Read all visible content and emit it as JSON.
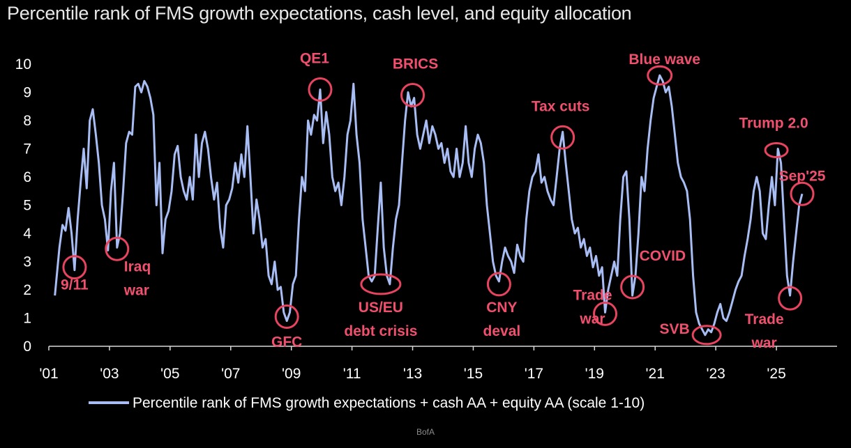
{
  "chart_data": {
    "type": "line",
    "title": "Percentile rank of FMS growth expectations, cash level, and equity allocation",
    "source": "BofA",
    "ylim": [
      0,
      10
    ],
    "yticks": [
      "0",
      "1",
      "2",
      "3",
      "4",
      "5",
      "6",
      "7",
      "8",
      "9",
      "10"
    ],
    "xlim": [
      2001.0,
      2027.0
    ],
    "xticks": [
      {
        "label": "'01",
        "x": 2001
      },
      {
        "label": "'03",
        "x": 2003
      },
      {
        "label": "'05",
        "x": 2005
      },
      {
        "label": "'07",
        "x": 2007
      },
      {
        "label": "'09",
        "x": 2009
      },
      {
        "label": "'11",
        "x": 2011
      },
      {
        "label": "'13",
        "x": 2013
      },
      {
        "label": "'15",
        "x": 2015
      },
      {
        "label": "'17",
        "x": 2017
      },
      {
        "label": "'19",
        "x": 2019
      },
      {
        "label": "'21",
        "x": 2021
      },
      {
        "label": "'23",
        "x": 2023
      },
      {
        "label": "'25",
        "x": 2025
      }
    ],
    "legend": "Percentile rank of FMS growth expectations + cash AA + equity AA (scale 1-10)",
    "series": [
      {
        "name": "Percentile rank of FMS growth expectations + cash AA + equity AA (scale 1-10)",
        "color": "#a9bdf5",
        "points": [
          [
            2001.2,
            1.8
          ],
          [
            2001.35,
            3.5
          ],
          [
            2001.45,
            4.3
          ],
          [
            2001.55,
            4.1
          ],
          [
            2001.65,
            4.9
          ],
          [
            2001.75,
            4.0
          ],
          [
            2001.85,
            2.7
          ],
          [
            2001.95,
            4.5
          ],
          [
            2002.05,
            5.8
          ],
          [
            2002.15,
            7.0
          ],
          [
            2002.25,
            5.6
          ],
          [
            2002.35,
            8.0
          ],
          [
            2002.45,
            8.4
          ],
          [
            2002.55,
            7.5
          ],
          [
            2002.65,
            6.5
          ],
          [
            2002.75,
            5.0
          ],
          [
            2002.85,
            4.5
          ],
          [
            2002.95,
            3.4
          ],
          [
            2003.05,
            5.5
          ],
          [
            2003.15,
            6.5
          ],
          [
            2003.25,
            3.5
          ],
          [
            2003.35,
            4.0
          ],
          [
            2003.45,
            5.5
          ],
          [
            2003.55,
            7.2
          ],
          [
            2003.65,
            7.6
          ],
          [
            2003.75,
            7.5
          ],
          [
            2003.85,
            9.2
          ],
          [
            2003.95,
            9.3
          ],
          [
            2004.05,
            9.0
          ],
          [
            2004.15,
            9.4
          ],
          [
            2004.25,
            9.2
          ],
          [
            2004.35,
            8.8
          ],
          [
            2004.45,
            8.2
          ],
          [
            2004.55,
            5.0
          ],
          [
            2004.65,
            6.5
          ],
          [
            2004.75,
            3.3
          ],
          [
            2004.85,
            4.5
          ],
          [
            2004.95,
            4.8
          ],
          [
            2005.05,
            5.5
          ],
          [
            2005.15,
            6.8
          ],
          [
            2005.25,
            7.1
          ],
          [
            2005.35,
            6.0
          ],
          [
            2005.45,
            5.5
          ],
          [
            2005.55,
            5.2
          ],
          [
            2005.65,
            6.0
          ],
          [
            2005.75,
            5.2
          ],
          [
            2005.85,
            7.5
          ],
          [
            2005.95,
            6.0
          ],
          [
            2006.05,
            7.2
          ],
          [
            2006.15,
            7.6
          ],
          [
            2006.25,
            7.0
          ],
          [
            2006.35,
            6.0
          ],
          [
            2006.45,
            5.2
          ],
          [
            2006.55,
            5.8
          ],
          [
            2006.65,
            4.2
          ],
          [
            2006.75,
            3.5
          ],
          [
            2006.85,
            5.0
          ],
          [
            2006.95,
            5.2
          ],
          [
            2007.05,
            5.6
          ],
          [
            2007.15,
            6.5
          ],
          [
            2007.25,
            5.8
          ],
          [
            2007.35,
            6.8
          ],
          [
            2007.45,
            6.0
          ],
          [
            2007.55,
            7.8
          ],
          [
            2007.65,
            6.0
          ],
          [
            2007.75,
            4.0
          ],
          [
            2007.85,
            5.2
          ],
          [
            2007.95,
            4.5
          ],
          [
            2008.05,
            3.5
          ],
          [
            2008.15,
            3.8
          ],
          [
            2008.25,
            2.5
          ],
          [
            2008.35,
            2.2
          ],
          [
            2008.45,
            3.0
          ],
          [
            2008.55,
            2.0
          ],
          [
            2008.65,
            2.1
          ],
          [
            2008.75,
            1.2
          ],
          [
            2008.85,
            0.9
          ],
          [
            2008.95,
            1.2
          ],
          [
            2009.05,
            2.2
          ],
          [
            2009.15,
            2.5
          ],
          [
            2009.25,
            4.5
          ],
          [
            2009.35,
            6.0
          ],
          [
            2009.45,
            5.5
          ],
          [
            2009.55,
            8.0
          ],
          [
            2009.65,
            7.5
          ],
          [
            2009.75,
            8.2
          ],
          [
            2009.85,
            8.0
          ],
          [
            2009.95,
            9.1
          ],
          [
            2010.05,
            7.2
          ],
          [
            2010.15,
            8.3
          ],
          [
            2010.25,
            7.5
          ],
          [
            2010.35,
            6.0
          ],
          [
            2010.45,
            5.5
          ],
          [
            2010.55,
            5.8
          ],
          [
            2010.65,
            5.0
          ],
          [
            2010.75,
            6.0
          ],
          [
            2010.85,
            7.5
          ],
          [
            2010.95,
            8.0
          ],
          [
            2011.05,
            9.3
          ],
          [
            2011.15,
            7.5
          ],
          [
            2011.25,
            6.5
          ],
          [
            2011.35,
            4.5
          ],
          [
            2011.45,
            3.5
          ],
          [
            2011.55,
            2.5
          ],
          [
            2011.65,
            2.3
          ],
          [
            2011.75,
            2.5
          ],
          [
            2011.85,
            4.2
          ],
          [
            2011.95,
            5.8
          ],
          [
            2012.05,
            3.5
          ],
          [
            2012.15,
            2.5
          ],
          [
            2012.25,
            2.2
          ],
          [
            2012.35,
            3.5
          ],
          [
            2012.45,
            4.5
          ],
          [
            2012.55,
            5.0
          ],
          [
            2012.65,
            6.5
          ],
          [
            2012.75,
            8.0
          ],
          [
            2012.85,
            9.0
          ],
          [
            2012.95,
            8.5
          ],
          [
            2013.05,
            8.8
          ],
          [
            2013.15,
            7.5
          ],
          [
            2013.25,
            7.0
          ],
          [
            2013.35,
            7.5
          ],
          [
            2013.45,
            8.0
          ],
          [
            2013.55,
            7.2
          ],
          [
            2013.65,
            7.8
          ],
          [
            2013.75,
            7.5
          ],
          [
            2013.85,
            7.0
          ],
          [
            2013.95,
            7.2
          ],
          [
            2014.05,
            6.5
          ],
          [
            2014.15,
            7.0
          ],
          [
            2014.25,
            6.2
          ],
          [
            2014.35,
            6.0
          ],
          [
            2014.45,
            7.0
          ],
          [
            2014.55,
            6.0
          ],
          [
            2014.65,
            6.5
          ],
          [
            2014.75,
            7.8
          ],
          [
            2014.85,
            6.5
          ],
          [
            2014.95,
            6.0
          ],
          [
            2015.05,
            7.0
          ],
          [
            2015.15,
            7.5
          ],
          [
            2015.25,
            7.2
          ],
          [
            2015.35,
            6.5
          ],
          [
            2015.45,
            5.0
          ],
          [
            2015.55,
            4.0
          ],
          [
            2015.65,
            3.0
          ],
          [
            2015.75,
            2.5
          ],
          [
            2015.85,
            2.3
          ],
          [
            2015.95,
            3.0
          ],
          [
            2016.05,
            3.5
          ],
          [
            2016.15,
            3.2
          ],
          [
            2016.25,
            3.0
          ],
          [
            2016.35,
            2.6
          ],
          [
            2016.45,
            3.6
          ],
          [
            2016.55,
            3.2
          ],
          [
            2016.65,
            3.0
          ],
          [
            2016.75,
            4.5
          ],
          [
            2016.85,
            5.5
          ],
          [
            2016.95,
            6.0
          ],
          [
            2017.05,
            6.2
          ],
          [
            2017.15,
            6.8
          ],
          [
            2017.25,
            5.8
          ],
          [
            2017.35,
            6.0
          ],
          [
            2017.45,
            5.5
          ],
          [
            2017.55,
            5.2
          ],
          [
            2017.65,
            5.0
          ],
          [
            2017.75,
            6.0
          ],
          [
            2017.85,
            7.0
          ],
          [
            2017.95,
            7.6
          ],
          [
            2018.05,
            6.5
          ],
          [
            2018.15,
            5.5
          ],
          [
            2018.25,
            4.5
          ],
          [
            2018.35,
            4.0
          ],
          [
            2018.45,
            4.2
          ],
          [
            2018.55,
            3.5
          ],
          [
            2018.65,
            3.8
          ],
          [
            2018.75,
            3.2
          ],
          [
            2018.85,
            3.5
          ],
          [
            2018.95,
            2.8
          ],
          [
            2019.05,
            3.2
          ],
          [
            2019.15,
            2.5
          ],
          [
            2019.25,
            2.8
          ],
          [
            2019.35,
            1.2
          ],
          [
            2019.45,
            2.0
          ],
          [
            2019.55,
            2.5
          ],
          [
            2019.65,
            3.0
          ],
          [
            2019.75,
            2.5
          ],
          [
            2019.85,
            4.5
          ],
          [
            2019.95,
            6.0
          ],
          [
            2020.05,
            6.2
          ],
          [
            2020.15,
            4.5
          ],
          [
            2020.25,
            1.8
          ],
          [
            2020.35,
            2.5
          ],
          [
            2020.45,
            4.0
          ],
          [
            2020.55,
            6.0
          ],
          [
            2020.65,
            5.5
          ],
          [
            2020.75,
            7.0
          ],
          [
            2020.85,
            8.0
          ],
          [
            2020.95,
            8.8
          ],
          [
            2021.05,
            9.2
          ],
          [
            2021.15,
            9.6
          ],
          [
            2021.25,
            9.4
          ],
          [
            2021.35,
            9.0
          ],
          [
            2021.45,
            9.2
          ],
          [
            2021.55,
            8.5
          ],
          [
            2021.65,
            7.5
          ],
          [
            2021.75,
            6.5
          ],
          [
            2021.85,
            6.0
          ],
          [
            2021.95,
            5.8
          ],
          [
            2022.05,
            5.5
          ],
          [
            2022.15,
            4.5
          ],
          [
            2022.25,
            2.5
          ],
          [
            2022.35,
            1.2
          ],
          [
            2022.45,
            0.8
          ],
          [
            2022.55,
            0.6
          ],
          [
            2022.65,
            0.4
          ],
          [
            2022.75,
            0.6
          ],
          [
            2022.85,
            0.5
          ],
          [
            2022.95,
            0.8
          ],
          [
            2023.05,
            1.2
          ],
          [
            2023.15,
            1.5
          ],
          [
            2023.25,
            1.0
          ],
          [
            2023.35,
            0.9
          ],
          [
            2023.45,
            1.2
          ],
          [
            2023.55,
            1.6
          ],
          [
            2023.65,
            2.0
          ],
          [
            2023.75,
            2.3
          ],
          [
            2023.85,
            2.5
          ],
          [
            2023.95,
            3.2
          ],
          [
            2024.05,
            3.8
          ],
          [
            2024.15,
            4.5
          ],
          [
            2024.25,
            5.5
          ],
          [
            2024.35,
            6.0
          ],
          [
            2024.45,
            5.5
          ],
          [
            2024.55,
            4.0
          ],
          [
            2024.65,
            3.8
          ],
          [
            2024.75,
            5.0
          ],
          [
            2024.85,
            6.0
          ],
          [
            2024.95,
            5.0
          ],
          [
            2025.05,
            7.0
          ],
          [
            2025.15,
            6.5
          ],
          [
            2025.25,
            4.5
          ],
          [
            2025.35,
            2.5
          ],
          [
            2025.45,
            1.8
          ],
          [
            2025.55,
            3.0
          ],
          [
            2025.65,
            4.0
          ],
          [
            2025.75,
            5.0
          ],
          [
            2025.85,
            5.4
          ]
        ]
      }
    ],
    "annotations": [
      {
        "label": "9/11",
        "lines": [
          "9/11"
        ],
        "x": 2001.85,
        "y": 2.8
      },
      {
        "label": "Iraq war",
        "lines": [
          "Iraq",
          "war"
        ],
        "x": 2003.25,
        "y": 3.45
      },
      {
        "label": "GFC",
        "lines": [
          "GFC"
        ],
        "x": 2008.85,
        "y": 1.05
      },
      {
        "label": "QE1",
        "lines": [
          "QE1"
        ],
        "x": 2009.95,
        "y": 9.1
      },
      {
        "label": "US/EU debt crisis",
        "lines": [
          "US/EU",
          "debt crisis"
        ],
        "x": 2011.95,
        "y": 2.2
      },
      {
        "label": "BRICS",
        "lines": [
          "BRICS"
        ],
        "x": 2013.0,
        "y": 8.9
      },
      {
        "label": "CNY deval",
        "lines": [
          "CNY",
          "deval"
        ],
        "x": 2015.85,
        "y": 2.2
      },
      {
        "label": "Tax cuts",
        "lines": [
          "Tax cuts"
        ],
        "x": 2017.95,
        "y": 7.4
      },
      {
        "label": "Trade war",
        "lines": [
          "Trade",
          "war"
        ],
        "x": 2019.35,
        "y": 1.15
      },
      {
        "label": "COVID",
        "lines": [
          "COVID"
        ],
        "x": 2020.25,
        "y": 2.1
      },
      {
        "label": "Blue wave",
        "lines": [
          "Blue wave"
        ],
        "x": 2021.15,
        "y": 9.6
      },
      {
        "label": "SVB",
        "lines": [
          "SVB"
        ],
        "x": 2022.7,
        "y": 0.4
      },
      {
        "label": "Trump 2.0",
        "lines": [
          "Trump 2.0"
        ],
        "x": 2025.0,
        "y": 6.95
      },
      {
        "label": "Sep'25",
        "lines": [
          "Sep'25"
        ],
        "x": 2025.85,
        "y": 5.4
      },
      {
        "label": "Trade war",
        "lines": [
          "Trade",
          "war"
        ],
        "x": 2025.45,
        "y": 1.7
      }
    ]
  }
}
